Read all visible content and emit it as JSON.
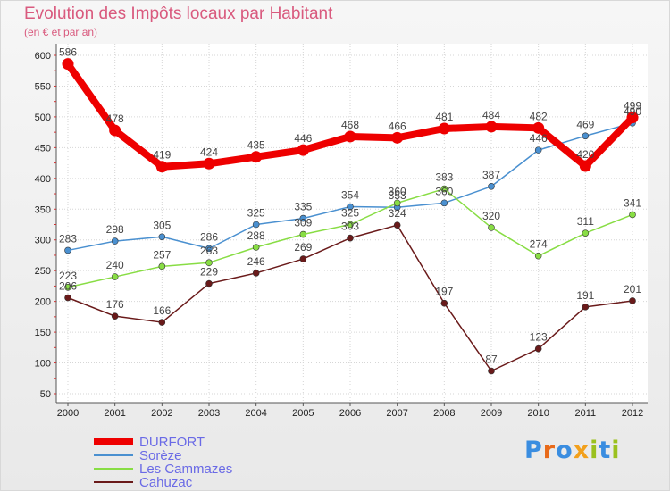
{
  "title": "Evolution des Impôts locaux par Habitant",
  "subtitle": "(en € et par an)",
  "brand": {
    "text": "Proxiti",
    "colors": [
      "#3a8de0",
      "#e86a1a",
      "#3a8de0",
      "#f2a01c",
      "#9bc11e",
      "#3a8de0",
      "#9bc11e"
    ]
  },
  "chart_data": {
    "type": "line",
    "title": "Evolution des Impôts locaux par Habitant",
    "ylabel": "(en € et par an)",
    "xlabel": "",
    "x": [
      "2000",
      "2001",
      "2002",
      "2003",
      "2004",
      "2005",
      "2006",
      "2007",
      "2008",
      "2009",
      "2010",
      "2011",
      "2012"
    ],
    "ylim": [
      50,
      600
    ],
    "yticks": [
      "50",
      "100",
      "150",
      "200",
      "250",
      "300",
      "350",
      "400",
      "450",
      "500",
      "550",
      "600"
    ],
    "grid": true,
    "legend": "bottom-left",
    "series": [
      {
        "name": "DURFORT",
        "color": "#ee0000",
        "values": [
          586,
          478,
          419,
          424,
          435,
          446,
          468,
          466,
          481,
          484,
          482,
          420,
          499
        ]
      },
      {
        "name": "Sorèze",
        "color": "#4a90d0",
        "values": [
          283,
          298,
          305,
          286,
          325,
          335,
          354,
          353,
          360,
          387,
          446,
          469,
          490
        ]
      },
      {
        "name": "Les Cammazes",
        "color": "#88dd44",
        "values": [
          223,
          240,
          257,
          263,
          288,
          309,
          325,
          360,
          383,
          320,
          274,
          311,
          341
        ]
      },
      {
        "name": "Cahuzac",
        "color": "#6a1a1a",
        "values": [
          206,
          176,
          166,
          229,
          246,
          269,
          303,
          324,
          197,
          87,
          123,
          191,
          201
        ]
      }
    ]
  }
}
